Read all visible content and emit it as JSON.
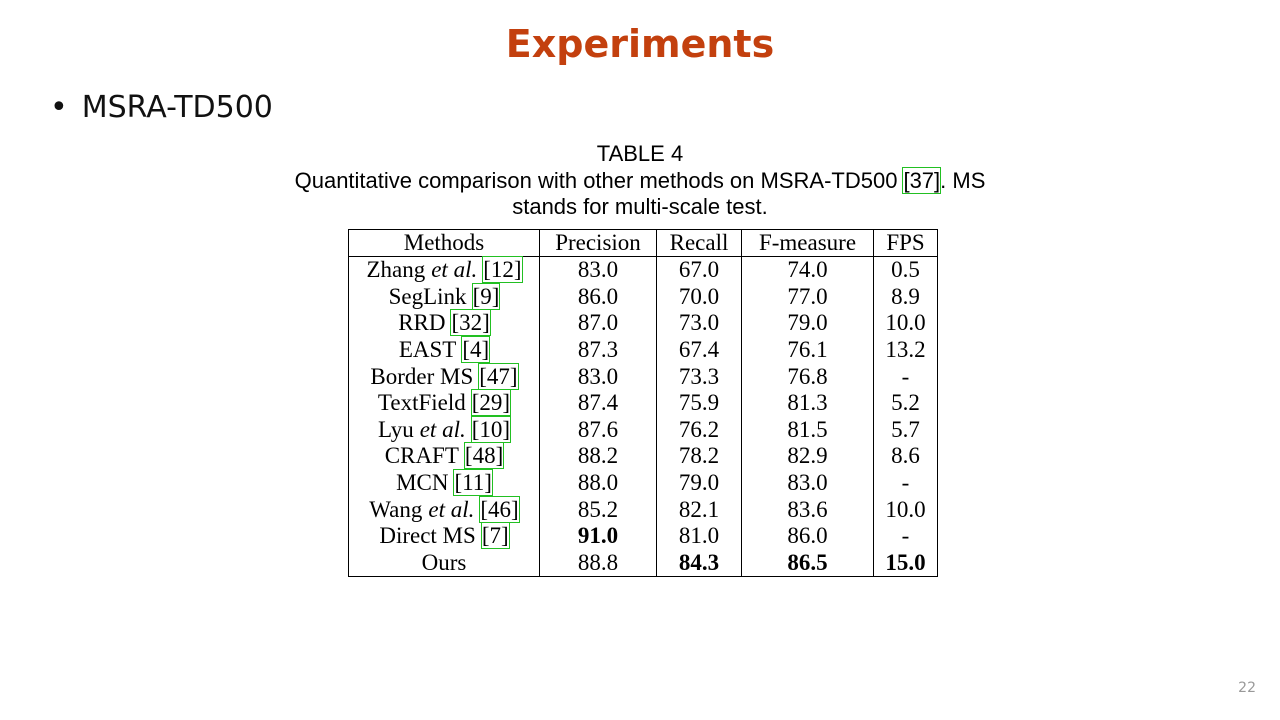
{
  "slide": {
    "title": "Experiments",
    "bullet": "MSRA-TD500",
    "page_number": "22"
  },
  "caption": {
    "label": "TABLE 4",
    "before": "Quantitative comparison with other methods on MSRA-TD500",
    "ref": "[37]",
    "after": ". MS",
    "line2": "stands for multi-scale test."
  },
  "table": {
    "header": [
      "Methods",
      "Precision",
      "Recall",
      "F-measure",
      "FPS"
    ],
    "rows": [
      {
        "method": {
          "text": "Zhang",
          "em": "et al.",
          "ref": "[12]"
        },
        "cells": [
          "83.0",
          "67.0",
          "74.0",
          "0.5"
        ],
        "bold": []
      },
      {
        "method": {
          "text": "SegLink",
          "ref": "[9]"
        },
        "cells": [
          "86.0",
          "70.0",
          "77.0",
          "8.9"
        ],
        "bold": []
      },
      {
        "method": {
          "text": "RRD",
          "ref": "[32]"
        },
        "cells": [
          "87.0",
          "73.0",
          "79.0",
          "10.0"
        ],
        "bold": []
      },
      {
        "method": {
          "text": "EAST",
          "ref": "[4]"
        },
        "cells": [
          "87.3",
          "67.4",
          "76.1",
          "13.2"
        ],
        "bold": []
      },
      {
        "method": {
          "text": "Border MS",
          "ref": "[47]"
        },
        "cells": [
          "83.0",
          "73.3",
          "76.8",
          "-"
        ],
        "bold": []
      },
      {
        "method": {
          "text": "TextField",
          "ref": "[29]"
        },
        "cells": [
          "87.4",
          "75.9",
          "81.3",
          "5.2"
        ],
        "bold": []
      },
      {
        "method": {
          "text": "Lyu",
          "em": "et al.",
          "ref": "[10]"
        },
        "cells": [
          "87.6",
          "76.2",
          "81.5",
          "5.7"
        ],
        "bold": []
      },
      {
        "method": {
          "text": "CRAFT",
          "ref": "[48]"
        },
        "cells": [
          "88.2",
          "78.2",
          "82.9",
          "8.6"
        ],
        "bold": []
      },
      {
        "method": {
          "text": "MCN",
          "ref": "[11]"
        },
        "cells": [
          "88.0",
          "79.0",
          "83.0",
          "-"
        ],
        "bold": []
      },
      {
        "method": {
          "text": "Wang",
          "em": "et al.",
          "ref": "[46]"
        },
        "cells": [
          "85.2",
          "82.1",
          "83.6",
          "10.0"
        ],
        "bold": []
      },
      {
        "method": {
          "text": "Direct MS",
          "ref": "[7]"
        },
        "cells": [
          "91.0",
          "81.0",
          "86.0",
          "-"
        ],
        "bold": [
          0
        ]
      },
      {
        "method": {
          "text": "Ours"
        },
        "cells": [
          "88.8",
          "84.3",
          "86.5",
          "15.0"
        ],
        "bold": [
          1,
          2,
          3
        ]
      }
    ]
  }
}
